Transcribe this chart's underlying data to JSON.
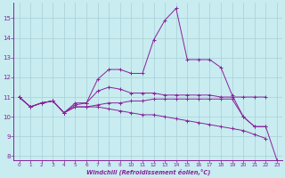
{
  "xlabel": "Windchill (Refroidissement éolien,°C)",
  "bg_color": "#c8ecf0",
  "grid_color": "#a8d0d8",
  "line_color": "#882299",
  "xlim": [
    -0.5,
    23.5
  ],
  "ylim": [
    7.8,
    15.8
  ],
  "yticks": [
    8,
    9,
    10,
    11,
    12,
    13,
    14,
    15
  ],
  "xticks": [
    0,
    1,
    2,
    3,
    4,
    5,
    6,
    7,
    8,
    9,
    10,
    11,
    12,
    13,
    14,
    15,
    16,
    17,
    18,
    19,
    20,
    21,
    22,
    23
  ],
  "series": [
    {
      "x": [
        0,
        1,
        2,
        3,
        4,
        5,
        6,
        7,
        8,
        9,
        10,
        11,
        12,
        13,
        14,
        15,
        16,
        17,
        18,
        19,
        20,
        21,
        22
      ],
      "y": [
        11.0,
        10.5,
        10.7,
        10.8,
        10.2,
        10.7,
        10.7,
        11.9,
        12.4,
        12.4,
        12.2,
        12.2,
        13.9,
        14.9,
        15.5,
        12.9,
        12.9,
        12.9,
        12.5,
        11.1,
        10.0,
        9.5,
        9.5
      ]
    },
    {
      "x": [
        0,
        1,
        2,
        3,
        4,
        5,
        6,
        7,
        8,
        9,
        10,
        11,
        12,
        13,
        14,
        15,
        16,
        17,
        18,
        19,
        20,
        21,
        22
      ],
      "y": [
        11.0,
        10.5,
        10.7,
        10.8,
        10.2,
        10.6,
        10.7,
        11.3,
        11.5,
        11.4,
        11.2,
        11.2,
        11.2,
        11.1,
        11.1,
        11.1,
        11.1,
        11.1,
        11.0,
        11.0,
        11.0,
        11.0,
        11.0
      ]
    },
    {
      "x": [
        0,
        1,
        2,
        3,
        4,
        5,
        6,
        7,
        8,
        9,
        10,
        11,
        12,
        13,
        14,
        15,
        16,
        17,
        18,
        19,
        20,
        21,
        22
      ],
      "y": [
        11.0,
        10.5,
        10.7,
        10.8,
        10.2,
        10.5,
        10.5,
        10.5,
        10.4,
        10.3,
        10.2,
        10.1,
        10.1,
        10.0,
        9.9,
        9.8,
        9.7,
        9.6,
        9.5,
        9.4,
        9.3,
        9.1,
        8.9
      ]
    },
    {
      "x": [
        0,
        1,
        2,
        3,
        4,
        5,
        6,
        7,
        8,
        9,
        10,
        11,
        12,
        13,
        14,
        15,
        16,
        17,
        18,
        19,
        20,
        21,
        22,
        23
      ],
      "y": [
        11.0,
        10.5,
        10.7,
        10.8,
        10.2,
        10.5,
        10.5,
        10.6,
        10.7,
        10.7,
        10.8,
        10.8,
        10.9,
        10.9,
        10.9,
        10.9,
        10.9,
        10.9,
        10.9,
        10.9,
        10.0,
        9.5,
        9.5,
        7.8
      ]
    }
  ]
}
